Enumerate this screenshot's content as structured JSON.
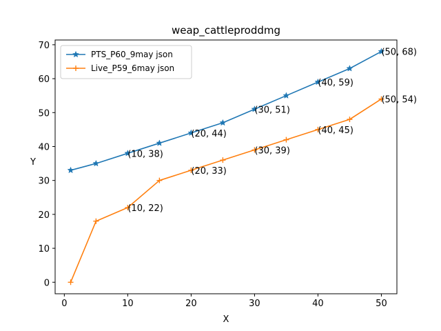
{
  "chart_data": {
    "type": "line",
    "title": "weap_cattleproddmg",
    "xlabel": "X",
    "ylabel": "Y",
    "xlim": [
      -1.45,
      52.45
    ],
    "ylim": [
      -3.4,
      71.4
    ],
    "xticks": [
      0,
      10,
      20,
      30,
      40,
      50
    ],
    "yticks": [
      0,
      10,
      20,
      30,
      40,
      50,
      60,
      70
    ],
    "grid": false,
    "legend_position": "upper-left",
    "series": [
      {
        "name": "PTS_P60_9may json",
        "color": "#1f77b4",
        "marker": "star",
        "x": [
          1,
          5,
          10,
          15,
          20,
          25,
          30,
          35,
          40,
          45,
          50
        ],
        "y": [
          33,
          35,
          38,
          41,
          44,
          47,
          51,
          55,
          59,
          63,
          68
        ]
      },
      {
        "name": "Live_P59_6may json",
        "color": "#ff7f0e",
        "marker": "plus",
        "x": [
          1,
          5,
          10,
          15,
          20,
          25,
          30,
          35,
          40,
          45,
          50
        ],
        "y": [
          0,
          18,
          22,
          30,
          33,
          36,
          39,
          42,
          45,
          48,
          54
        ]
      }
    ],
    "annotations": [
      {
        "text": "(10, 38)",
        "x": 10,
        "y": 38
      },
      {
        "text": "(20, 44)",
        "x": 20,
        "y": 44
      },
      {
        "text": "(30, 51)",
        "x": 30,
        "y": 51
      },
      {
        "text": "(40, 59)",
        "x": 40,
        "y": 59
      },
      {
        "text": "(50, 68)",
        "x": 50,
        "y": 68
      },
      {
        "text": "(10, 22)",
        "x": 10,
        "y": 22
      },
      {
        "text": "(20, 33)",
        "x": 20,
        "y": 33
      },
      {
        "text": "(30, 39)",
        "x": 30,
        "y": 39
      },
      {
        "text": "(40, 45)",
        "x": 40,
        "y": 45
      },
      {
        "text": "(50, 54)",
        "x": 50,
        "y": 54
      }
    ]
  }
}
